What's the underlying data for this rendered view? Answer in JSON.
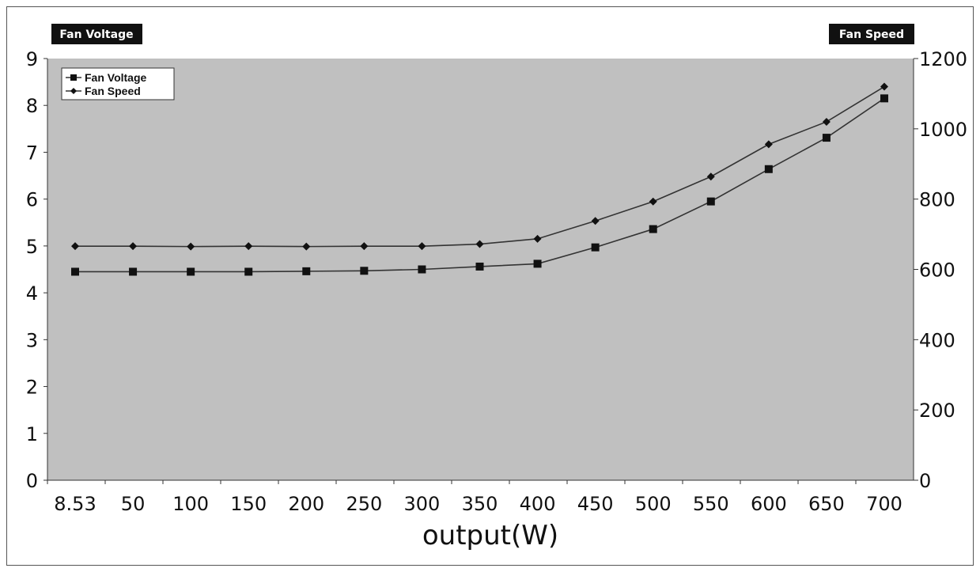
{
  "chart_data": {
    "type": "line",
    "xlabel": "output(W)",
    "ylabel_left": "Fan Voltage",
    "ylabel_right": "Fan Speed",
    "x_tick_labels": [
      "8.53",
      "50",
      "100",
      "150",
      "200",
      "250",
      "300",
      "350",
      "400",
      "450",
      "500",
      "550",
      "600",
      "650",
      "700"
    ],
    "categories": [
      "8.53",
      "50",
      "100",
      "150",
      "200",
      "250",
      "300",
      "350",
      "400",
      "450",
      "500",
      "550",
      "600",
      "650",
      "700"
    ],
    "ylim_left": [
      0,
      9
    ],
    "ylim_right": [
      0,
      1200
    ],
    "y_left_ticks": [
      "0",
      "1",
      "2",
      "3",
      "4",
      "5",
      "6",
      "7",
      "8",
      "9"
    ],
    "y_right_ticks": [
      "0",
      "200",
      "400",
      "600",
      "800",
      "1000",
      "1200"
    ],
    "legend": {
      "position": "top-left",
      "entries": [
        "Fan Voltage",
        "Fan Speed"
      ]
    },
    "grid": false,
    "series": [
      {
        "name": "Fan Voltage",
        "axis": "left",
        "marker": "square",
        "values": [
          4.45,
          4.45,
          4.45,
          4.45,
          4.46,
          4.47,
          4.5,
          4.56,
          4.62,
          4.97,
          5.36,
          5.95,
          6.64,
          7.31,
          8.15
        ]
      },
      {
        "name": "Fan Speed",
        "axis": "right",
        "marker": "diamond",
        "values": [
          666,
          666,
          665,
          666,
          665,
          666,
          666,
          672,
          687,
          738,
          793,
          864,
          956,
          1020,
          1120
        ]
      }
    ],
    "colors": {
      "plot_background": "#c0c0c0",
      "line": "#333333",
      "marker": "#111111"
    }
  }
}
